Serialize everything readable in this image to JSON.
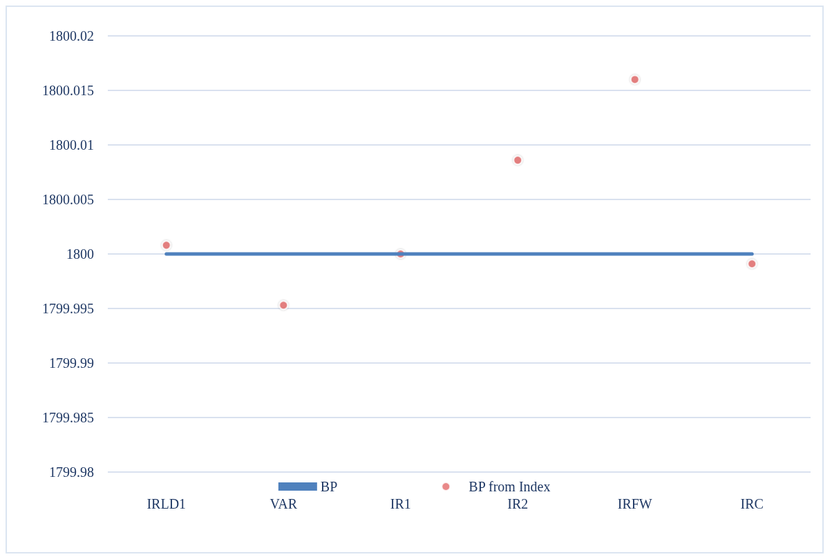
{
  "chart_data": {
    "type": "line",
    "categories": [
      "IRLD1",
      "VAR",
      "IR1",
      "IR2",
      "IRFW",
      "IRC"
    ],
    "series": [
      {
        "name": "BP",
        "color": "#4f81bd",
        "values": [
          1800,
          1800,
          1800,
          1800,
          1800,
          1800
        ]
      },
      {
        "name": "BP from Index",
        "type": "scatter",
        "color": "#e46c6c",
        "values": [
          1800.0008,
          1799.9953,
          1800.0,
          1800.0086,
          1800.016,
          1799.9991
        ]
      }
    ],
    "ylim": [
      1799.98,
      1800.02
    ],
    "yticks": [
      1799.98,
      1799.985,
      1799.99,
      1799.995,
      1800,
      1800.005,
      1800.01,
      1800.015,
      1800.02
    ],
    "grid": "y",
    "legend": "bottom"
  }
}
